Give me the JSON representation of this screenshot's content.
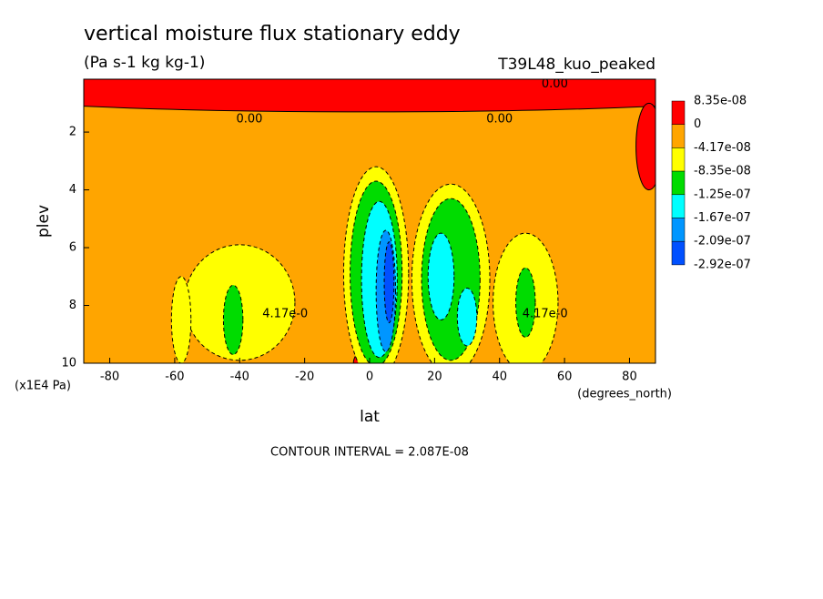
{
  "chart_data": {
    "type": "contour",
    "title": "vertical moisture flux stationary eddy",
    "subtitle": "(Pa s-1 kg kg-1)",
    "run_label": "T39L48_kuo_peaked",
    "x_label": "lat",
    "x_unit": "(degrees_north)",
    "y_label": "plev",
    "y_unit": "(x1E4 Pa)",
    "footer": "CONTOUR INTERVAL = 2.087E-08",
    "xlim": [
      -88,
      88
    ],
    "ylim": [
      10,
      0.17
    ],
    "xticks": [
      -80,
      -60,
      -40,
      -20,
      0,
      20,
      40,
      60,
      80
    ],
    "yticks": [
      2,
      4,
      6,
      8,
      10
    ],
    "levels": [
      {
        "value": 8.35e-08,
        "label": "8.35e-08"
      },
      0,
      {
        "value": -4.17e-08,
        "label": "-4.17e-08"
      },
      {
        "value": -8.35e-08,
        "label": "-8.35e-08"
      },
      {
        "value": -1.25e-07,
        "label": "-1.25e-07"
      },
      {
        "value": -1.67e-07,
        "label": "-1.67e-07"
      },
      {
        "value": -2.09e-07,
        "label": "-2.09e-07"
      },
      {
        "value": -2.92e-07,
        "label": "-2.92e-07"
      }
    ],
    "colors": [
      "#ff0000",
      "#ffa500",
      "#ffff00",
      "#00dc00",
      "#00ffff",
      "#0096ff",
      "#0050ff"
    ],
    "background_value": -2e-08,
    "blobs": [
      {
        "lat": 0,
        "plev": 0.55,
        "dlat": 130,
        "dplev": 0.75,
        "value": 4e-08
      },
      {
        "lat": 86,
        "plev": 2.5,
        "dlat": 4,
        "dplev": 1.5,
        "value": 4e-08
      },
      {
        "lat": 0,
        "plev": 10,
        "dlat": 5,
        "dplev": 0.5,
        "value": 4e-08
      },
      {
        "lat": -40,
        "plev": 7.9,
        "dlat": 17,
        "dplev": 2,
        "value": -6e-08
      },
      {
        "lat": -58,
        "plev": 8.5,
        "dlat": 3,
        "dplev": 1.5,
        "value": -6e-08
      },
      {
        "lat": -42,
        "plev": 8.5,
        "dlat": 3,
        "dplev": 1.2,
        "value": -1e-07
      },
      {
        "lat": 2,
        "plev": 6.9,
        "dlat": 10,
        "dplev": 3.7,
        "value": -6e-08
      },
      {
        "lat": 2,
        "plev": 6.9,
        "dlat": 8,
        "dplev": 3.2,
        "value": -1e-07
      },
      {
        "lat": 3,
        "plev": 7.1,
        "dlat": 5.5,
        "dplev": 2.7,
        "value": -1.5e-07
      },
      {
        "lat": 5,
        "plev": 7.5,
        "dlat": 3,
        "dplev": 2.1,
        "value": -1.9e-07
      },
      {
        "lat": 6,
        "plev": 7.2,
        "dlat": 1.5,
        "dplev": 1.4,
        "value": -2.5e-07
      },
      {
        "lat": 25,
        "plev": 7.1,
        "dlat": 12,
        "dplev": 3.3,
        "value": -6e-08
      },
      {
        "lat": 25,
        "plev": 7.1,
        "dlat": 9,
        "dplev": 2.8,
        "value": -1e-07
      },
      {
        "lat": 22,
        "plev": 7,
        "dlat": 4,
        "dplev": 1.5,
        "value": -1.5e-07
      },
      {
        "lat": 30,
        "plev": 8.4,
        "dlat": 3,
        "dplev": 1,
        "value": -1.5e-07
      },
      {
        "lat": 48,
        "plev": 7.9,
        "dlat": 10,
        "dplev": 2.4,
        "value": -6e-08
      },
      {
        "lat": 48,
        "plev": 7.9,
        "dlat": 3,
        "dplev": 1.2,
        "value": -1e-07
      }
    ],
    "annotations": [
      {
        "text": "0.00",
        "lat": -37,
        "plev": 1.55
      },
      {
        "text": "0.00",
        "lat": 40,
        "plev": 1.55
      },
      {
        "text": "0.00",
        "lat": 57,
        "plev": 0.35
      },
      {
        "text": "4.17e-0",
        "lat": -26,
        "plev": 8.3
      },
      {
        "text": "4.17e-0",
        "lat": 54,
        "plev": 8.3
      }
    ]
  }
}
